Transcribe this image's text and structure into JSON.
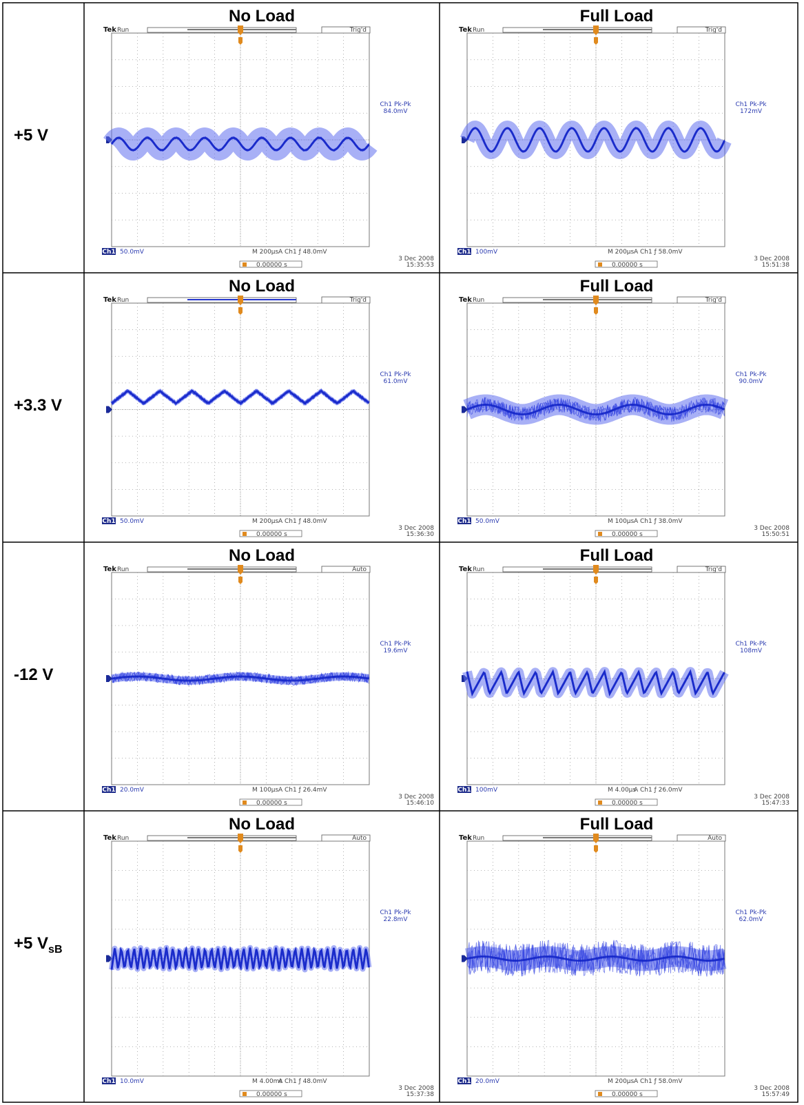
{
  "table": {
    "rows": [
      {
        "label": "+5 V",
        "cells": [
          {
            "heading": "No Load",
            "scope": {
              "brand": "Tek",
              "status": "Run",
              "trigger_state": "Trig'd",
              "measure_label": "Ch1 Pk-Pk",
              "measure_value": "84.0mV",
              "channel": "Ch1",
              "scale": "50.0mV",
              "timebase": "M 200µs",
              "trigger_setting": "A  Ch1  ƒ  48.0mV",
              "position": "0.00000 s",
              "date": "3 Dec 2008",
              "time": "15:35:53"
            }
          },
          {
            "heading": "Full Load",
            "scope": {
              "brand": "Tek",
              "status": "Run",
              "trigger_state": "Trig'd",
              "measure_label": "Ch1 Pk-Pk",
              "measure_value": "172mV",
              "channel": "Ch1",
              "scale": "100mV",
              "timebase": "M 200µs",
              "trigger_setting": "A  Ch1  ƒ  58.0mV",
              "position": "0.00000 s",
              "date": "3 Dec 2008",
              "time": "15:51:38"
            }
          }
        ]
      },
      {
        "label": "+3.3 V",
        "cells": [
          {
            "heading": "No Load",
            "scope": {
              "brand": "Tek",
              "status": "Run",
              "trigger_state": "Trig'd",
              "measure_label": "Ch1 Pk-Pk",
              "measure_value": "61.0mV",
              "channel": "Ch1",
              "scale": "50.0mV",
              "timebase": "M 200µs",
              "trigger_setting": "A  Ch1  ƒ  48.0mV",
              "position": "0.00000 s",
              "date": "3 Dec 2008",
              "time": "15:36:30"
            }
          },
          {
            "heading": "Full Load",
            "scope": {
              "brand": "Tek",
              "status": "Run",
              "trigger_state": "Trig'd",
              "measure_label": "Ch1 Pk-Pk",
              "measure_value": "90.0mV",
              "channel": "Ch1",
              "scale": "50.0mV",
              "timebase": "M 100µs",
              "trigger_setting": "A  Ch1  ƒ  38.0mV",
              "position": "0.00000 s",
              "date": "3 Dec 2008",
              "time": "15:50:51"
            }
          }
        ]
      },
      {
        "label": "-12 V",
        "cells": [
          {
            "heading": "No Load",
            "scope": {
              "brand": "Tek",
              "status": "Run",
              "trigger_state": "Auto",
              "measure_label": "Ch1 Pk-Pk",
              "measure_value": "19.6mV",
              "channel": "Ch1",
              "scale": "20.0mV",
              "timebase": "M 100µs",
              "trigger_setting": "A  Ch1  ƒ  26.4mV",
              "position": "0.00000 s",
              "date": "3 Dec 2008",
              "time": "15:46:10"
            }
          },
          {
            "heading": "Full Load",
            "scope": {
              "brand": "Tek",
              "status": "Run",
              "trigger_state": "Trig'd",
              "measure_label": "Ch1 Pk-Pk",
              "measure_value": "108mV",
              "channel": "Ch1",
              "scale": "100mV",
              "timebase": "M 4.00µs",
              "trigger_setting": "A  Ch1  ƒ  26.0mV",
              "position": "0.00000 s",
              "date": "3 Dec 2008",
              "time": "15:47:33"
            }
          }
        ]
      },
      {
        "label": "+5 V",
        "label_sub": "sB",
        "cells": [
          {
            "heading": "No Load",
            "scope": {
              "brand": "Tek",
              "status": "Run",
              "trigger_state": "Auto",
              "measure_label": "Ch1 Pk-Pk",
              "measure_value": "22.8mV",
              "channel": "Ch1",
              "scale": "10.0mV",
              "timebase": "M 4.00ms",
              "trigger_setting": "A  Ch1  ƒ  48.0mV",
              "position": "0.00000 s",
              "date": "3 Dec 2008",
              "time": "15:37:38"
            }
          },
          {
            "heading": "Full Load",
            "scope": {
              "brand": "Tek",
              "status": "Run",
              "trigger_state": "Auto",
              "measure_label": "Ch1 Pk-Pk",
              "measure_value": "62.0mV",
              "channel": "Ch1",
              "scale": "20.0mV",
              "timebase": "M 200µs",
              "trigger_setting": "A  Ch1  ƒ  58.0mV",
              "position": "0.00000 s",
              "date": "3 Dec 2008",
              "time": "15:57:49"
            }
          }
        ]
      }
    ]
  }
}
